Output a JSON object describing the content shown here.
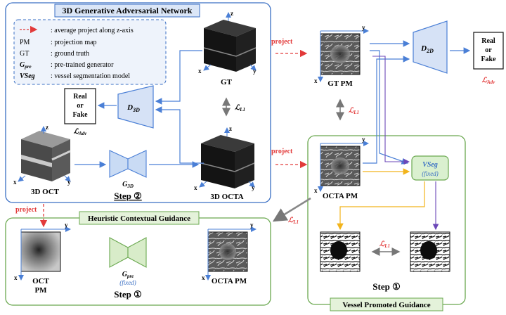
{
  "panels": {
    "gan": {
      "title": "3D Generative Adversarial Network",
      "color": "#3a6fc4"
    },
    "hcg": {
      "title": "Heuristic Contextual Guidance",
      "color": "#6aa84f"
    },
    "vpg": {
      "title": "Vessel Promoted Guidance",
      "color": "#6aa84f"
    }
  },
  "legend": [
    {
      "key": "- - ->",
      "desc": ": average project along z-axis"
    },
    {
      "key": "PM",
      "desc": ": projection map"
    },
    {
      "key": "GT",
      "desc": ": ground truth"
    },
    {
      "key": "G_pre",
      "desc": ": pre-trained generator"
    },
    {
      "key": "VSeg",
      "desc": ": vessel segmentation model"
    }
  ],
  "axes": {
    "x": "x",
    "y": "y",
    "z": "z"
  },
  "labels": {
    "gt": "GT",
    "gt_pm": "GT PM",
    "octa3d": "3D OCTA",
    "oct3d": "3D OCT",
    "octa_pm": "OCTA PM",
    "oct_pm_line1": "OCT",
    "oct_pm_line2": "PM",
    "octa_pm_bottom": "OCTA PM",
    "real_or_fake": [
      "Real",
      "or",
      "Fake"
    ],
    "d3d": "D3D",
    "d2d": "D2D",
    "g3d": "G3D",
    "gpre": "Gpre",
    "fixed": "(fixed)",
    "vseg": "VSeg",
    "l_adv": "ℒAdv",
    "l_l1": "ℒL1",
    "project": "project",
    "step2": "Step ②",
    "step1_left": "Step ①",
    "step1_right": "Step ①"
  },
  "colors": {
    "blue_arrow": "#4a7fd6",
    "red_arrow": "#e23a3a",
    "yellow_arrow": "#f2b41c",
    "purple_arrow": "#6b47b8",
    "gray_arrow": "#777777",
    "discriminator_fill": "#d6e2f6",
    "generator_blue_fill": "#c9dbf4",
    "generator_green_fill": "#d8ecc9",
    "vseg_fill": "#daf0cf"
  }
}
